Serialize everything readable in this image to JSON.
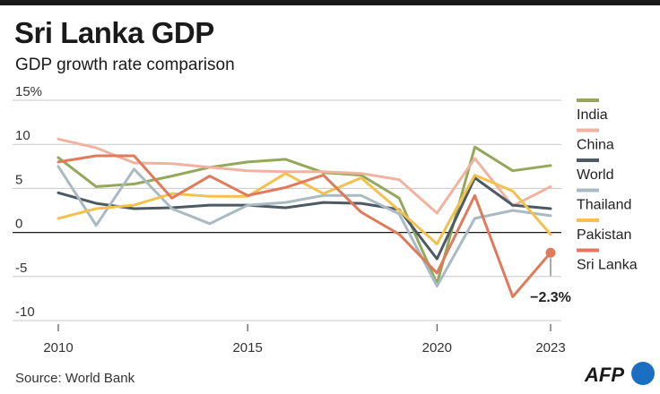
{
  "header": {
    "title": "Sri Lanka GDP",
    "subtitle": "GDP growth rate comparison"
  },
  "footer": {
    "source": "Source: World Bank",
    "logo": "AFP"
  },
  "colors": {
    "India": "#94a85c",
    "China": "#f1b39f",
    "World": "#4c5a64",
    "Thailand": "#a9bac3",
    "Pakistan": "#f2c14e",
    "Sri Lanka": "#e07a5a",
    "zero_line": "#1a1a1a",
    "grid": "#c8c8c8",
    "brand": "#1b6fc0"
  },
  "chart_data": {
    "type": "line",
    "title": "Sri Lanka GDP",
    "subtitle": "GDP growth rate comparison",
    "xlabel": "",
    "ylabel": "",
    "x": [
      2010,
      2011,
      2012,
      2013,
      2014,
      2015,
      2016,
      2017,
      2018,
      2019,
      2020,
      2021,
      2022,
      2023
    ],
    "xticks": [
      "2010",
      "2015",
      "2020",
      "2023"
    ],
    "ylim": [
      -10,
      15
    ],
    "yticks": [
      "15%",
      "10",
      "5",
      "0",
      "-5",
      "-10"
    ],
    "ytick_values": [
      15,
      10,
      5,
      0,
      -5,
      -10
    ],
    "grid": true,
    "legend_position": "right",
    "series": [
      {
        "name": "India",
        "values": [
          8.5,
          5.2,
          5.5,
          6.4,
          7.4,
          8.0,
          8.3,
          6.8,
          6.5,
          3.9,
          -5.8,
          9.7,
          7.0,
          7.6
        ]
      },
      {
        "name": "China",
        "values": [
          10.6,
          9.6,
          7.9,
          7.8,
          7.4,
          7.0,
          6.9,
          6.9,
          6.7,
          6.0,
          2.2,
          8.4,
          3.0,
          5.2
        ]
      },
      {
        "name": "World",
        "values": [
          4.5,
          3.3,
          2.7,
          2.8,
          3.1,
          3.1,
          2.8,
          3.4,
          3.3,
          2.6,
          -3.0,
          6.2,
          3.1,
          2.7
        ]
      },
      {
        "name": "Thailand",
        "values": [
          7.5,
          0.8,
          7.2,
          2.7,
          1.0,
          3.1,
          3.4,
          4.2,
          4.2,
          2.1,
          -6.1,
          1.6,
          2.5,
          1.9
        ]
      },
      {
        "name": "Pakistan",
        "values": [
          1.6,
          2.7,
          3.1,
          4.4,
          4.1,
          4.1,
          6.7,
          4.4,
          6.2,
          2.5,
          -1.3,
          6.5,
          4.7,
          -0.2
        ]
      },
      {
        "name": "Sri Lanka",
        "values": [
          8.0,
          8.7,
          8.7,
          3.9,
          6.4,
          4.2,
          5.1,
          6.5,
          2.3,
          -0.2,
          -4.6,
          4.2,
          -7.3,
          -2.3
        ]
      }
    ],
    "annotations": [
      {
        "series": "Sri Lanka",
        "x": 2023,
        "text": "−2.3%"
      }
    ]
  }
}
